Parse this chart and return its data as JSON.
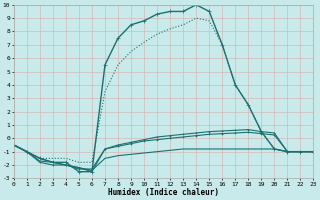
{
  "xlabel": "Humidex (Indice chaleur)",
  "xlim": [
    0,
    23
  ],
  "ylim": [
    -3,
    10
  ],
  "yticks": [
    -3,
    -2,
    -1,
    0,
    1,
    2,
    3,
    4,
    5,
    6,
    7,
    8,
    9,
    10
  ],
  "xticks": [
    0,
    1,
    2,
    3,
    4,
    5,
    6,
    7,
    8,
    9,
    10,
    11,
    12,
    13,
    14,
    15,
    16,
    17,
    18,
    19,
    20,
    21,
    22,
    23
  ],
  "bg_color": "#c9eaea",
  "grid_color": "#b8d8d8",
  "line_color": "#1a7070",
  "curves": [
    {
      "x": [
        0,
        1,
        2,
        3,
        4,
        5,
        6,
        7,
        8,
        9,
        10,
        11,
        12,
        13,
        14,
        15,
        16,
        17,
        18,
        19,
        20,
        21,
        22,
        23
      ],
      "y": [
        -0.5,
        -1.0,
        -1.5,
        -1.8,
        -1.8,
        -2.5,
        -2.5,
        5.5,
        7.5,
        8.5,
        8.8,
        9.3,
        9.5,
        9.5,
        10.0,
        9.5,
        7.0,
        4.0,
        2.5,
        0.5,
        -0.8,
        -1.0,
        -1.0,
        -1.0
      ],
      "lw": 1.0,
      "ms": 2.5,
      "marker": "+",
      "linestyle": "-"
    },
    {
      "x": [
        0,
        1,
        2,
        3,
        4,
        5,
        6,
        7,
        8,
        9,
        10,
        11,
        12,
        13,
        14,
        15,
        16,
        17,
        18,
        19,
        20,
        21,
        22,
        23
      ],
      "y": [
        -0.5,
        -1.0,
        -1.5,
        -1.5,
        -1.5,
        -1.8,
        -1.8,
        3.5,
        5.5,
        6.5,
        7.2,
        7.8,
        8.2,
        8.5,
        9.0,
        8.8,
        7.0,
        4.0,
        2.5,
        0.5,
        -0.8,
        -1.0,
        -1.0,
        -1.0
      ],
      "lw": 0.8,
      "ms": 0,
      "marker": "None",
      "linestyle": ":"
    },
    {
      "x": [
        0,
        1,
        2,
        3,
        4,
        5,
        6,
        7,
        8,
        9,
        10,
        11,
        12,
        13,
        14,
        15,
        16,
        17,
        18,
        19,
        20,
        21,
        22,
        23
      ],
      "y": [
        -0.5,
        -1.0,
        -1.5,
        -1.8,
        -2.0,
        -2.2,
        -2.5,
        -0.8,
        -0.5,
        -0.3,
        -0.1,
        0.1,
        0.2,
        0.3,
        0.4,
        0.5,
        0.55,
        0.6,
        0.65,
        0.5,
        0.4,
        -1.0,
        -1.0,
        -1.0
      ],
      "lw": 0.8,
      "ms": 2.0,
      "marker": "+",
      "linestyle": "-"
    },
    {
      "x": [
        0,
        1,
        2,
        3,
        4,
        5,
        6,
        7,
        8,
        9,
        10,
        11,
        12,
        13,
        14,
        15,
        16,
        17,
        18,
        19,
        20,
        21,
        22,
        23
      ],
      "y": [
        -0.5,
        -1.0,
        -1.8,
        -2.0,
        -2.0,
        -2.3,
        -2.3,
        -0.8,
        -0.6,
        -0.4,
        -0.2,
        -0.1,
        0.0,
        0.1,
        0.2,
        0.3,
        0.35,
        0.4,
        0.45,
        0.35,
        0.25,
        -1.0,
        -1.0,
        -1.0
      ],
      "lw": 0.8,
      "ms": 2.0,
      "marker": "+",
      "linestyle": "-"
    },
    {
      "x": [
        0,
        1,
        2,
        3,
        4,
        5,
        6,
        7,
        8,
        9,
        10,
        11,
        12,
        13,
        14,
        15,
        16,
        17,
        18,
        19,
        20,
        21,
        22,
        23
      ],
      "y": [
        -0.5,
        -1.0,
        -1.7,
        -1.8,
        -2.0,
        -2.2,
        -2.4,
        -1.5,
        -1.3,
        -1.2,
        -1.1,
        -1.0,
        -0.9,
        -0.8,
        -0.8,
        -0.8,
        -0.8,
        -0.8,
        -0.8,
        -0.8,
        -0.8,
        -1.0,
        -1.0,
        -1.0
      ],
      "lw": 0.8,
      "ms": 0,
      "marker": "None",
      "linestyle": "-"
    }
  ]
}
